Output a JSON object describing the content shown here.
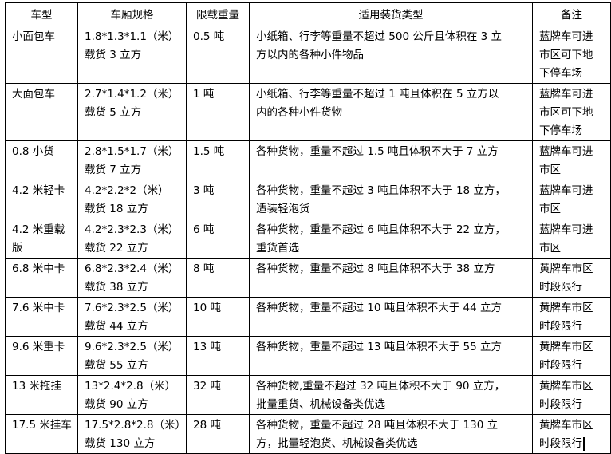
{
  "headers": [
    "车型",
    "车厢规格",
    "限载重量",
    "适用装货类型",
    "备注"
  ],
  "rows": [
    {
      "type": [
        "小面包车"
      ],
      "spec": [
        "1.8*1.3*1.1（米）",
        "载货 3 立方"
      ],
      "load": [
        "0.5 吨"
      ],
      "cargo": [
        "小纸箱、行李等重量不超过 500 公斤且体积在 3 立",
        "方以内的各种小件物品"
      ],
      "note": [
        "蓝牌车可进",
        "市区可下地",
        "下停车场"
      ]
    },
    {
      "type": [
        "大面包车"
      ],
      "spec": [
        "2.7*1.4*1.2（米）",
        "载货 5 立方"
      ],
      "load": [
        "1 吨"
      ],
      "cargo": [
        "小纸箱、行李等重量不超过 1 吨且体积在 5 立方以",
        "内的各种小件货物"
      ],
      "note": [
        "蓝牌车可进",
        "市区可下地",
        "下停车场"
      ]
    },
    {
      "type": [
        "0.8 小货"
      ],
      "spec": [
        "2.8*1.5*1.7（米）",
        "载货 7 立方"
      ],
      "load": [
        "1.5 吨"
      ],
      "cargo": [
        "各种货物，重量不超过 1.5 吨且体积不大于 7 立方"
      ],
      "note": [
        "蓝牌车可进",
        "市区"
      ]
    },
    {
      "type": [
        "4.2 米轻卡"
      ],
      "spec": [
        "4.2*2.2*2（米）",
        "载货 18 立方"
      ],
      "load": [
        "3 吨"
      ],
      "cargo": [
        "各种货物，重量不超过 3 吨且体积不大于 18 立方，",
        "适装轻泡货"
      ],
      "note": [
        "蓝牌车可进",
        "市区"
      ]
    },
    {
      "type": [
        "4.2 米重载",
        "版"
      ],
      "spec": [
        "4.2*2.3*2.3（米）",
        "载货 22 立方"
      ],
      "load": [
        "6 吨"
      ],
      "cargo": [
        "各种货物，重量不超过 6 吨且体积不大于 22 立方，",
        "重货首选"
      ],
      "note": [
        "蓝牌车可进",
        "市区"
      ]
    },
    {
      "type": [
        "6.8 米中卡"
      ],
      "spec": [
        "6.8*2.3*2.4（米）",
        "载货 38 立方"
      ],
      "load": [
        "8 吨"
      ],
      "cargo": [
        "各种货物，重量不超过 8 吨且体积不大于 38 立方"
      ],
      "note": [
        "黄牌车市区",
        "时段限行"
      ]
    },
    {
      "type": [
        "7.6 米中卡"
      ],
      "spec": [
        "7.6*2.3*2.5（米）",
        "载货 44 立方"
      ],
      "load": [
        "10 吨"
      ],
      "cargo": [
        "各种货物，重量不超过 10 吨且体积不大于 44 立方"
      ],
      "note": [
        "黄牌车市区",
        "时段限行"
      ]
    },
    {
      "type": [
        "9.6 米重卡"
      ],
      "spec": [
        "9.6*2.3*2.5（米）",
        "载货 55 立方"
      ],
      "load": [
        "13 吨"
      ],
      "cargo": [
        "各种货物，重量不超过 13 吨且体积不大于 55 立方"
      ],
      "note": [
        "黄牌车市区",
        "时段限行"
      ]
    },
    {
      "type": [
        "13 米拖挂"
      ],
      "spec": [
        "13*2.4*2.8（米）",
        "载货 90 立方"
      ],
      "load": [
        "32 吨"
      ],
      "cargo": [
        "各种货物,重量不超过 32 吨且体积不大于 90 立方，",
        "批量重货、机械设备类优选"
      ],
      "note": [
        "黄牌车市区",
        "时段限行"
      ]
    },
    {
      "type": [
        "17.5 米挂车"
      ],
      "spec": [
        "17.5*2.8*2.8（米）",
        "载货 130 立方"
      ],
      "load": [
        "28 吨"
      ],
      "cargo": [
        "各种货物，重量不超过 28 吨且体积不大于 130 立",
        "方，批量轻泡货、机械设备类优选"
      ],
      "note": [
        "黄牌车市区",
        "时段限行"
      ]
    }
  ]
}
